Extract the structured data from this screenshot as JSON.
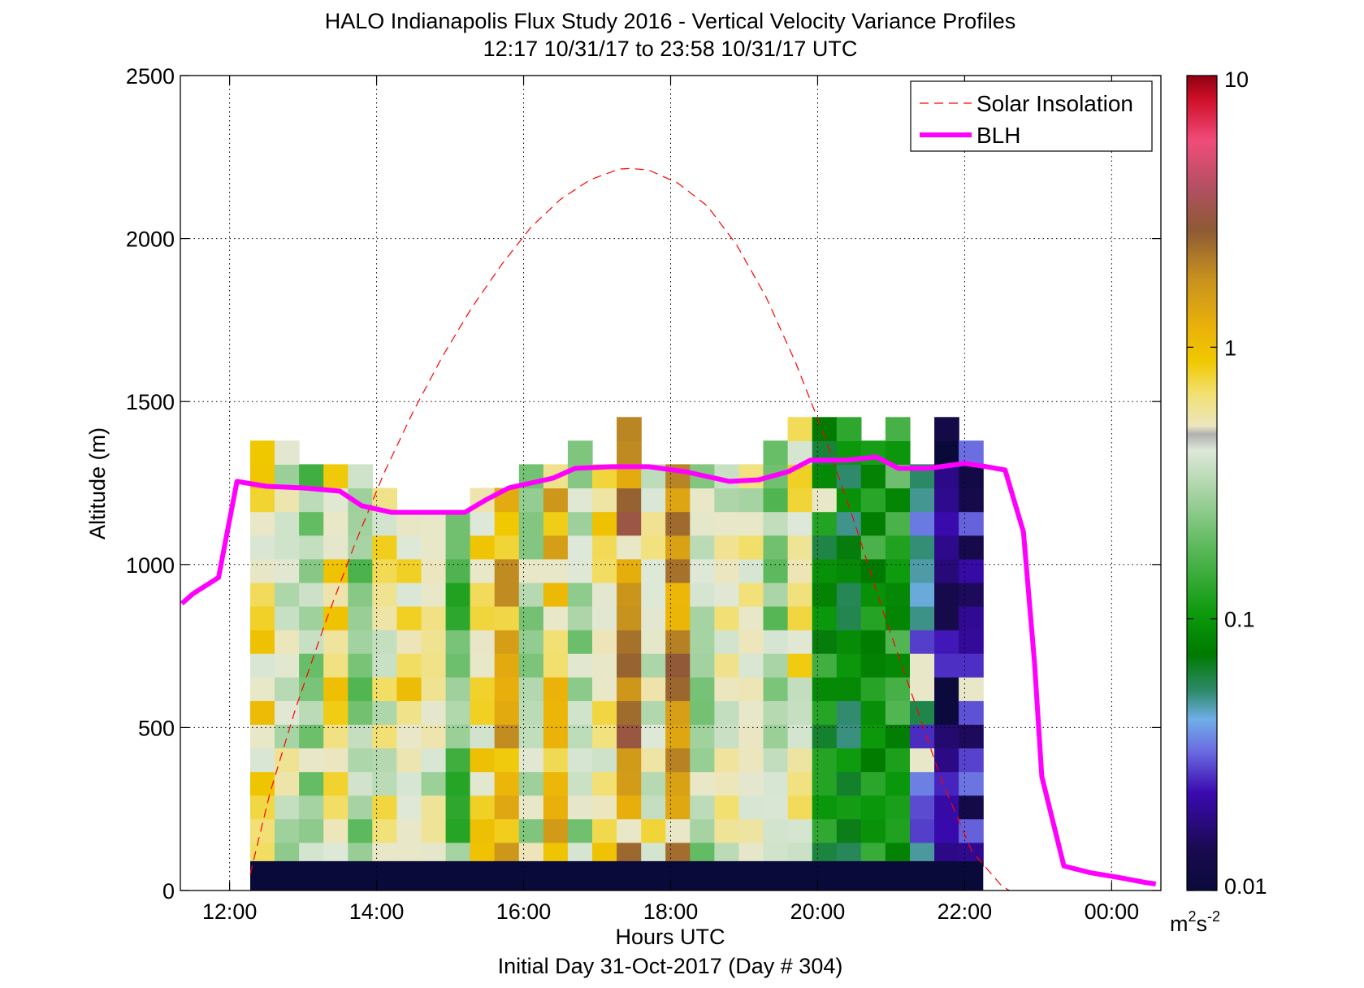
{
  "title_line1": "HALO Indianapolis Flux Study 2016 - Vertical Velocity Variance Profiles",
  "title_line2": "12:17 10/31/17 to 23:58 10/31/17  UTC",
  "xlabel": "Hours UTC",
  "xlabel2": "Initial Day 31-Oct-2017 (Day # 304)",
  "ylabel": "Altitude (m)",
  "colorbar_unit_main": "m",
  "colorbar_unit_sup1": "2",
  "colorbar_unit_mid": "s",
  "colorbar_unit_sup2": "-2",
  "legend": [
    {
      "label": "Solar Insolation",
      "style": "dashed",
      "color": "#ff0000"
    },
    {
      "label": "BLH",
      "style": "solid",
      "color": "#ff00ff"
    }
  ],
  "chart_data": {
    "type": "heatmap",
    "title": "HALO Indianapolis Flux Study 2016 - Vertical Velocity Variance Profiles",
    "xlabel": "Hours UTC",
    "ylabel": "Altitude (m)",
    "xlim": [
      11.33,
      24.67
    ],
    "ylim": [
      0,
      2500
    ],
    "xticks": [
      12,
      14,
      16,
      18,
      20,
      22,
      24
    ],
    "xtick_labels": [
      "12:00",
      "14:00",
      "16:00",
      "18:00",
      "20:00",
      "22:00",
      "00:00"
    ],
    "yticks": [
      0,
      500,
      1000,
      1500,
      2000,
      2500
    ],
    "ytick_labels": [
      "0",
      "500",
      "1000",
      "1500",
      "2000",
      "2500"
    ],
    "grid": true,
    "legend_position": "top-right",
    "colorbar": {
      "scale": "log",
      "range": [
        0.01,
        10
      ],
      "ticks": [
        0.01,
        0.1,
        1,
        10
      ],
      "tick_labels": [
        "0.01",
        "0.1",
        "1",
        "10"
      ],
      "unit": "m^2 s^-2"
    },
    "heatmap": {
      "x_start_hour": 12.28,
      "x_step_hours": 0.3324,
      "columns": 30,
      "y_bottom_m": 75,
      "y_step_m": 72.5,
      "column_tops_m": [
        1390,
        1390,
        1340,
        1340,
        1340,
        1245,
        1195,
        1195,
        1195,
        1245,
        1245,
        1340,
        1340,
        1390,
        1340,
        1435,
        1340,
        1295,
        1295,
        1340,
        1340,
        1390,
        1435,
        1485,
        1485,
        1390,
        1435,
        1340,
        1435,
        1390
      ],
      "pattern_log10": [
        -0.2,
        -0.4,
        -0.6,
        -0.2,
        -0.6,
        -0.3,
        -0.2,
        -0.4,
        -0.7,
        -0.2,
        0.05,
        -0.5,
        0.0,
        -0.55,
        -0.2,
        0.3,
        -0.3,
        0.25,
        -0.5,
        -0.3,
        -0.35,
        -0.6,
        -0.25,
        -1.0,
        -1.1,
        -1.0,
        -0.9,
        -1.4,
        -1.8,
        -1.7
      ],
      "near_surface_band": {
        "bottom_m": 0,
        "top_m": 90,
        "value": 0.01
      }
    },
    "series": [
      {
        "name": "Solar Insolation",
        "style": "dashed",
        "x": [
          12.28,
          12.55,
          12.9,
          13.3,
          13.7,
          14.1,
          14.5,
          14.9,
          15.3,
          15.7,
          16.1,
          16.5,
          16.9,
          17.3,
          17.45,
          17.7,
          18.1,
          18.5,
          18.9,
          19.3,
          19.7,
          20.1,
          20.5,
          20.9,
          21.3,
          21.7,
          22.1,
          22.5,
          22.75
        ],
        "y": [
          50,
          300,
          560,
          820,
          1060,
          1280,
          1470,
          1640,
          1790,
          1920,
          2035,
          2120,
          2180,
          2213,
          2215,
          2210,
          2170,
          2100,
          1980,
          1820,
          1620,
          1390,
          1130,
          850,
          590,
          330,
          120,
          15,
          -20
        ]
      },
      {
        "name": "BLH",
        "style": "solid",
        "x": [
          11.35,
          11.5,
          11.85,
          12.1,
          12.5,
          13.0,
          13.5,
          13.8,
          14.2,
          14.7,
          15.2,
          15.5,
          15.8,
          16.1,
          16.4,
          16.7,
          17.2,
          17.7,
          18.2,
          18.5,
          18.8,
          19.2,
          19.6,
          19.9,
          20.4,
          20.8,
          21.1,
          21.5,
          22.0,
          22.3,
          22.55,
          22.8,
          22.95,
          23.05,
          23.35,
          23.7,
          24.1,
          24.45,
          24.6
        ],
        "y": [
          880,
          910,
          960,
          1255,
          1240,
          1235,
          1225,
          1180,
          1160,
          1160,
          1160,
          1200,
          1235,
          1250,
          1265,
          1295,
          1300,
          1300,
          1285,
          1270,
          1255,
          1260,
          1285,
          1320,
          1320,
          1330,
          1295,
          1295,
          1310,
          1300,
          1290,
          1100,
          700,
          350,
          75,
          55,
          40,
          25,
          20
        ]
      }
    ]
  }
}
